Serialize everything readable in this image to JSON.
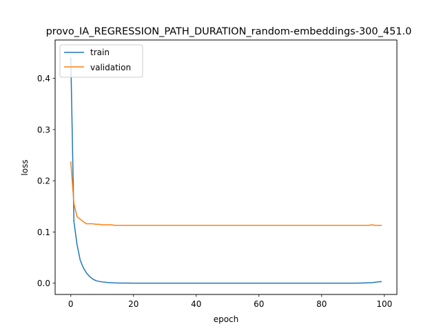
{
  "chart_data": {
    "type": "line",
    "title": "provo_IA_REGRESSION_PATH_DURATION_random-embeddings-300_451.0",
    "xlabel": "epoch",
    "ylabel": "loss",
    "xlim": [
      -5,
      104
    ],
    "ylim": [
      -0.022,
      0.475
    ],
    "x_ticks": [
      0,
      20,
      40,
      60,
      80,
      100
    ],
    "y_ticks": [
      0.0,
      0.1,
      0.2,
      0.3,
      0.4
    ],
    "x_tick_labels": [
      "0",
      "20",
      "40",
      "60",
      "80",
      "100"
    ],
    "y_tick_labels": [
      "0.0",
      "0.1",
      "0.2",
      "0.3",
      "0.4"
    ],
    "grid": false,
    "legend_position": "top-left",
    "series": [
      {
        "name": "train",
        "color": "#1f77b4",
        "x": [
          0,
          1,
          2,
          3,
          4,
          5,
          6,
          7,
          8,
          9,
          10,
          12,
          14,
          16,
          18,
          20,
          30,
          40,
          50,
          60,
          70,
          80,
          90,
          92,
          94,
          96,
          97,
          98,
          99
        ],
        "y": [
          0.44,
          0.12,
          0.075,
          0.045,
          0.03,
          0.02,
          0.013,
          0.008,
          0.005,
          0.0035,
          0.0025,
          0.0012,
          0.0006,
          0.0003,
          0.0002,
          0.0001,
          0.0,
          0.0,
          0.0,
          0.0,
          0.0,
          0.0,
          0.0,
          0.0002,
          0.0005,
          0.001,
          0.0018,
          0.0025,
          0.003
        ]
      },
      {
        "name": "validation",
        "color": "#ff7f0e",
        "x": [
          0,
          1,
          2,
          3,
          4,
          5,
          6,
          7,
          8,
          9,
          10,
          11,
          12,
          13,
          14,
          15,
          20,
          30,
          40,
          50,
          60,
          70,
          80,
          90,
          95,
          96,
          97,
          98,
          99
        ],
        "y": [
          0.237,
          0.155,
          0.13,
          0.125,
          0.12,
          0.116,
          0.116,
          0.116,
          0.115,
          0.115,
          0.114,
          0.114,
          0.114,
          0.114,
          0.113,
          0.113,
          0.113,
          0.113,
          0.113,
          0.113,
          0.113,
          0.113,
          0.113,
          0.113,
          0.113,
          0.114,
          0.113,
          0.113,
          0.113
        ]
      }
    ]
  }
}
